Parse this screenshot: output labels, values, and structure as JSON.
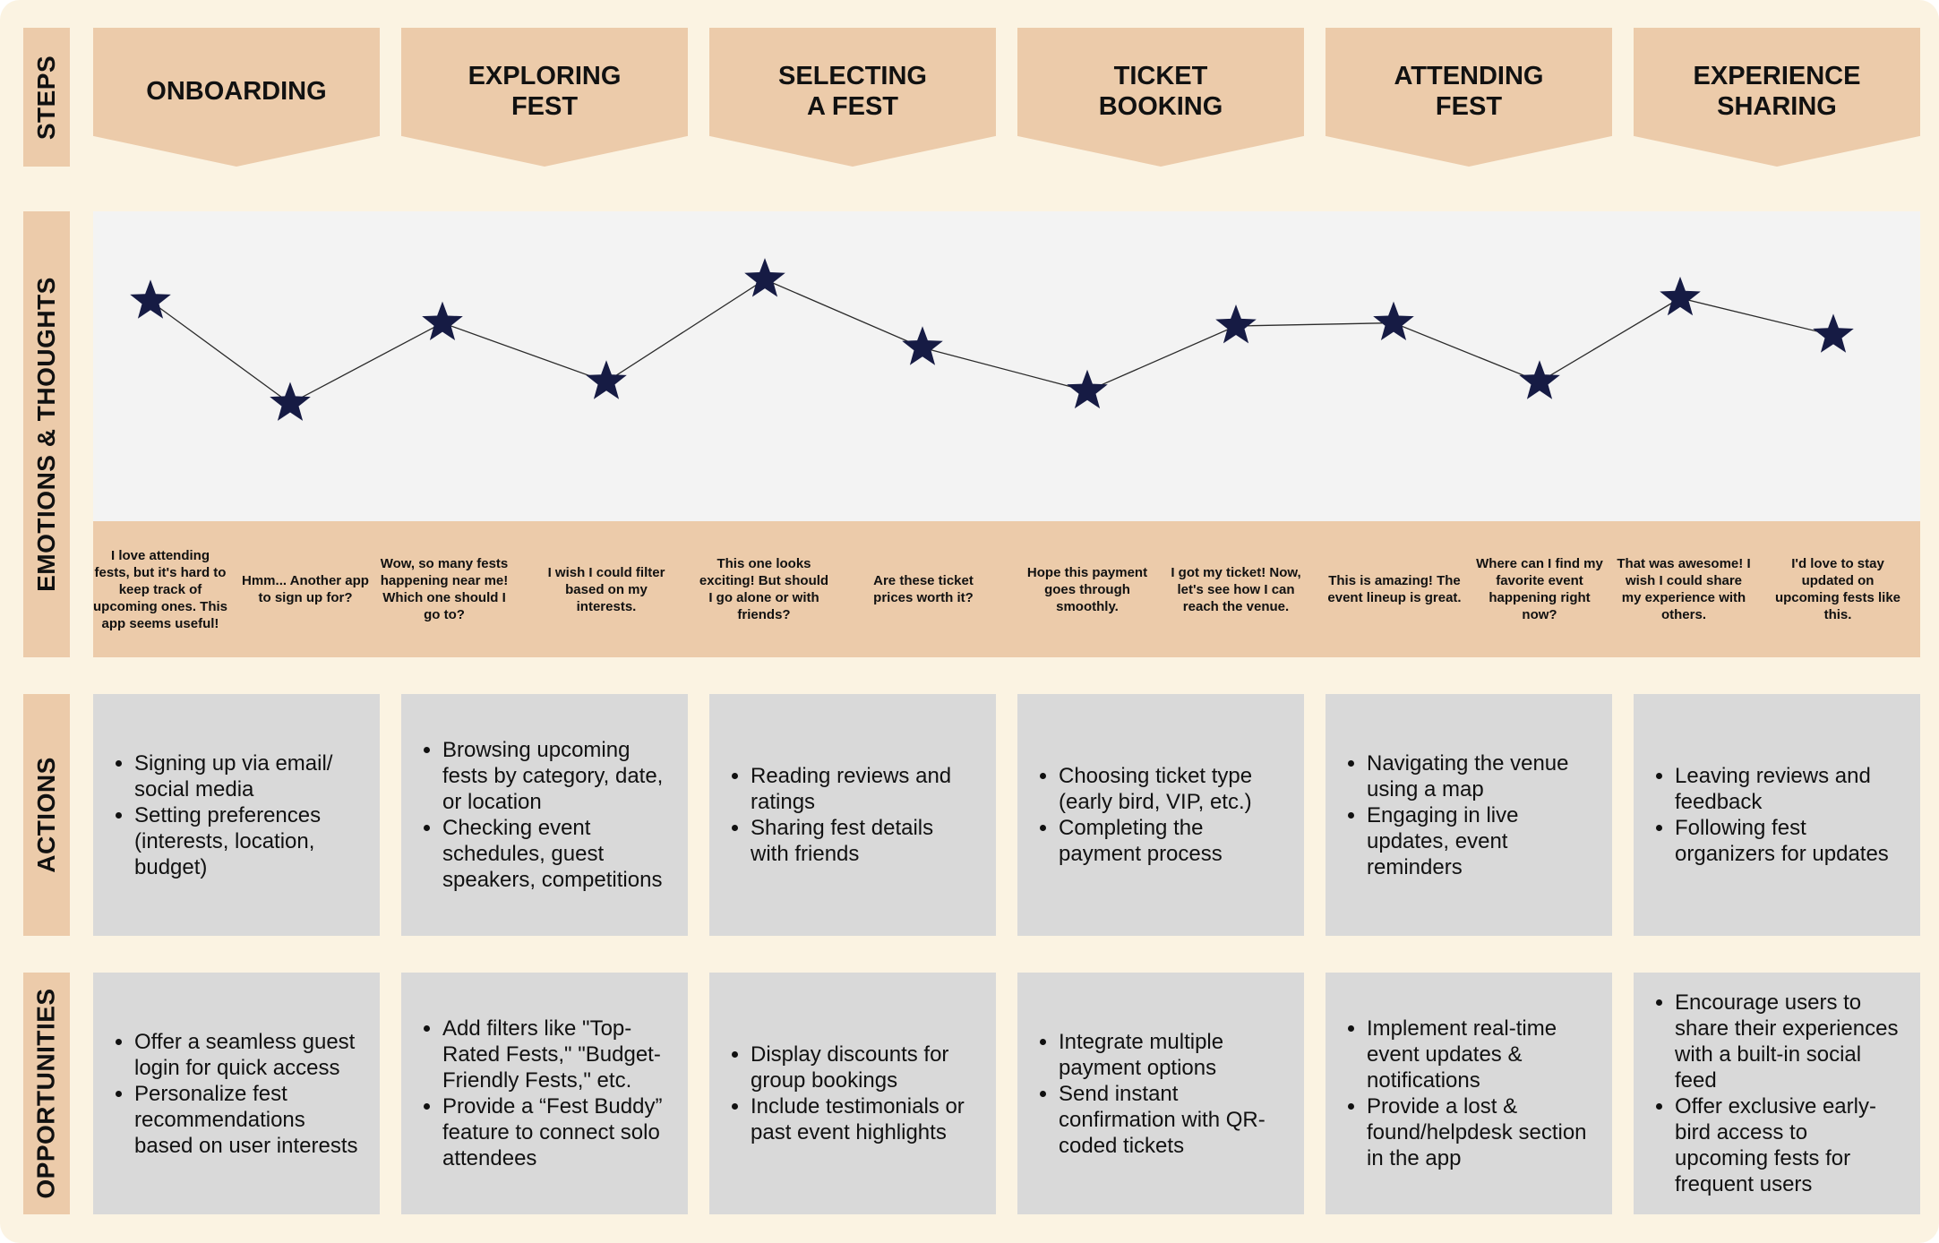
{
  "rows": {
    "steps": "STEPS",
    "emotions": "EMOTIONS & THOUGHTS",
    "actions": "ACTIONS",
    "opportunities": "OPPORTUNITIES"
  },
  "steps": [
    "ONBOARDING",
    "EXPLORING\nFEST",
    "SELECTING\nA FEST",
    "TICKET\nBOOKING",
    "ATTENDING\nFEST",
    "EXPERIENCE\nSHARING"
  ],
  "emotions": [
    {
      "thought": "I love attending fests, but it's hard to keep track of upcoming ones. This app seems useful!",
      "level": 0.71
    },
    {
      "thought": "Hmm... Another app to sign up for?",
      "level": 0.38
    },
    {
      "thought": "Wow, so many fests happening near me! Which one should I go to?",
      "level": 0.64
    },
    {
      "thought": "I wish I could filter based on my interests.",
      "level": 0.45
    },
    {
      "thought": "This one looks exciting! But should I go alone or with friends?",
      "level": 0.78
    },
    {
      "thought": "Are these ticket prices worth it?",
      "level": 0.56
    },
    {
      "thought": "Hope this payment goes through smoothly.",
      "level": 0.42
    },
    {
      "thought": "I got my ticket! Now, let's see how I can reach the venue.",
      "level": 0.63
    },
    {
      "thought": "This is amazing! The event lineup is great.",
      "level": 0.64
    },
    {
      "thought": "Where can I find my favorite event happening right now?",
      "level": 0.45
    },
    {
      "thought": "That was awesome! I wish I could share my experience with others.",
      "level": 0.72
    },
    {
      "thought": "I'd love to stay updated on upcoming fests like this.",
      "level": 0.6
    }
  ],
  "actions": [
    [
      "Signing up via email/ social media",
      "Setting preferences (interests, location, budget)"
    ],
    [
      "Browsing upcoming fests by category, date, or location",
      "Checking event schedules, guest speakers, competitions"
    ],
    [
      "Reading reviews and ratings",
      "Sharing fest details with friends"
    ],
    [
      "Choosing ticket type (early bird, VIP, etc.)",
      "Completing the payment process"
    ],
    [
      "Navigating the venue using a map",
      "Engaging in live updates, event reminders"
    ],
    [
      "Leaving reviews and feedback",
      "Following fest organizers for updates"
    ]
  ],
  "opportunities": [
    [
      "Offer a seamless guest login for quick access",
      "Personalize fest recommendations based on user interests"
    ],
    [
      "Add filters like \"Top-Rated Fests,\" \"Budget-Friendly Fests,\" etc.",
      "Provide a “Fest Buddy” feature to connect solo attendees"
    ],
    [
      "Display discounts for group bookings",
      "Include testimonials or past event highlights"
    ],
    [
      "Integrate multiple payment options",
      "Send instant confirmation with QR-coded tickets"
    ],
    [
      "Implement real-time event updates & notifications",
      "Provide a lost & found/helpdesk section in the app"
    ],
    [
      "Encourage users to share their experiences with a built-in social feed",
      "Offer exclusive early-bird access to upcoming fests for frequent users"
    ]
  ],
  "colors": {
    "background": "#fbf3e2",
    "accent": "#eccbaa",
    "card": "#d9d9d9",
    "panel": "#f3f3f3",
    "star": "#161b44"
  },
  "icons": {
    "marker": "star-icon"
  }
}
